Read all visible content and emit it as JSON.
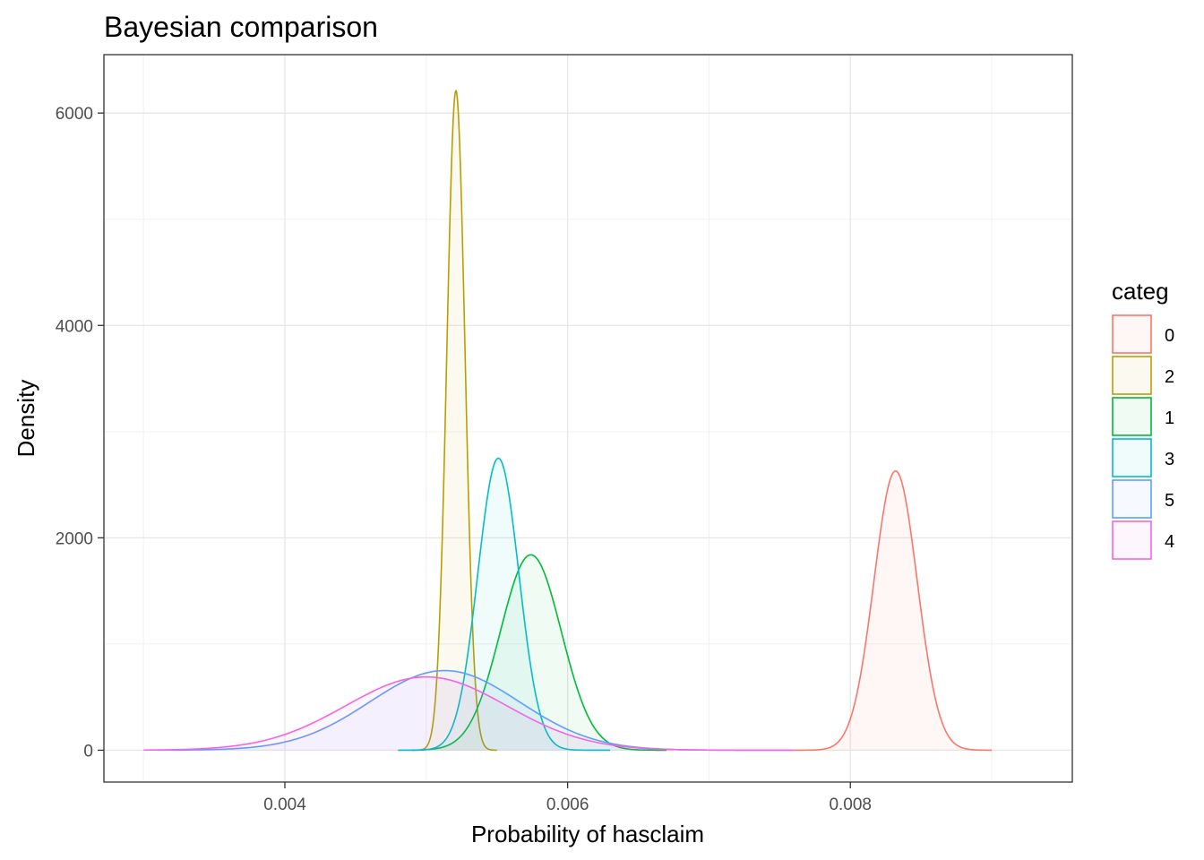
{
  "chart_data": {
    "type": "area",
    "title": "Bayesian comparison",
    "xlabel": "Probability of hasclaim",
    "ylabel": "Density",
    "xlim": [
      0.00272,
      0.00957
    ],
    "ylim": [
      -300,
      6550
    ],
    "x_ticks": [
      0.004,
      0.006,
      0.008
    ],
    "x_tick_labels": [
      "0.004",
      "0.006",
      "0.008"
    ],
    "y_ticks": [
      0,
      2000,
      4000,
      6000
    ],
    "y_tick_labels": [
      "0",
      "2000",
      "4000",
      "6000"
    ],
    "grid": true,
    "legend": {
      "title": "categ",
      "position": "right"
    },
    "series": [
      {
        "name": "0",
        "color": "#F8766D",
        "mean": 0.00832,
        "sd": 0.000153,
        "peak": 2630,
        "x_range": [
          0.0076,
          0.009
        ]
      },
      {
        "name": "2",
        "color": "#B79F00",
        "mean": 0.00521,
        "sd": 6.43e-05,
        "peak": 6210,
        "x_range": [
          0.0049,
          0.0055
        ]
      },
      {
        "name": "1",
        "color": "#00BA38",
        "mean": 0.00574,
        "sd": 0.000216,
        "peak": 1840,
        "x_range": [
          0.0049,
          0.0067
        ]
      },
      {
        "name": "3",
        "color": "#00BFC4",
        "mean": 0.00551,
        "sd": 0.000145,
        "peak": 2750,
        "x_range": [
          0.0048,
          0.0063
        ]
      },
      {
        "name": "5",
        "color": "#619CFF",
        "mean": 0.00513,
        "sd": 0.00053,
        "peak": 750,
        "x_range": [
          0.0031,
          0.0076
        ]
      },
      {
        "name": "4",
        "color": "#F564E3",
        "mean": 0.005,
        "sd": 0.00057,
        "peak": 690,
        "x_range": [
          0.003,
          0.0076
        ]
      }
    ]
  }
}
